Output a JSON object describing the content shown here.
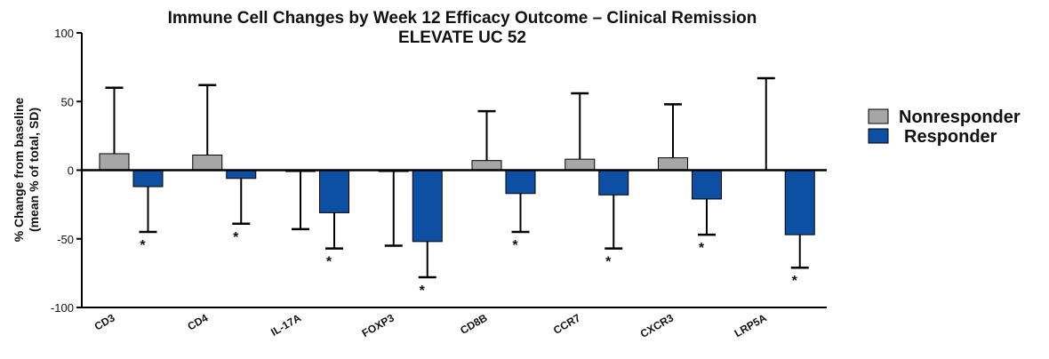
{
  "chart_data": {
    "type": "bar",
    "title": [
      "Immune Cell Changes by Week 12 Efficacy Outcome – Clinical Remission",
      "ELEVATE UC 52"
    ],
    "y_label": [
      "% Change from baseline",
      "(mean % of total, SD)"
    ],
    "categories": [
      "CD3",
      "CD4",
      "IL-17A",
      "FOXP3",
      "CD8B",
      "CCR7",
      "CXCR3",
      "LRP5A"
    ],
    "series": [
      {
        "name": "Nonresponder",
        "color": "#a6a6a6",
        "values": [
          12,
          11,
          -1,
          -1,
          7,
          8,
          9,
          0
        ],
        "errors": [
          48,
          51,
          42,
          54,
          36,
          48,
          39,
          67
        ]
      },
      {
        "name": "Responder",
        "color": "#0d4fa3",
        "values": [
          -12,
          -6,
          -31,
          -52,
          -17,
          -18,
          -21,
          -47
        ],
        "errors": [
          33,
          33,
          26,
          26,
          28,
          39,
          26,
          24
        ],
        "annotations": [
          "*",
          "*",
          "*",
          "*",
          "*",
          "*",
          "*",
          "*"
        ]
      }
    ],
    "ylim": [
      -100,
      100
    ],
    "yticks": [
      -100,
      -50,
      0,
      50,
      100
    ],
    "legend": "right"
  }
}
